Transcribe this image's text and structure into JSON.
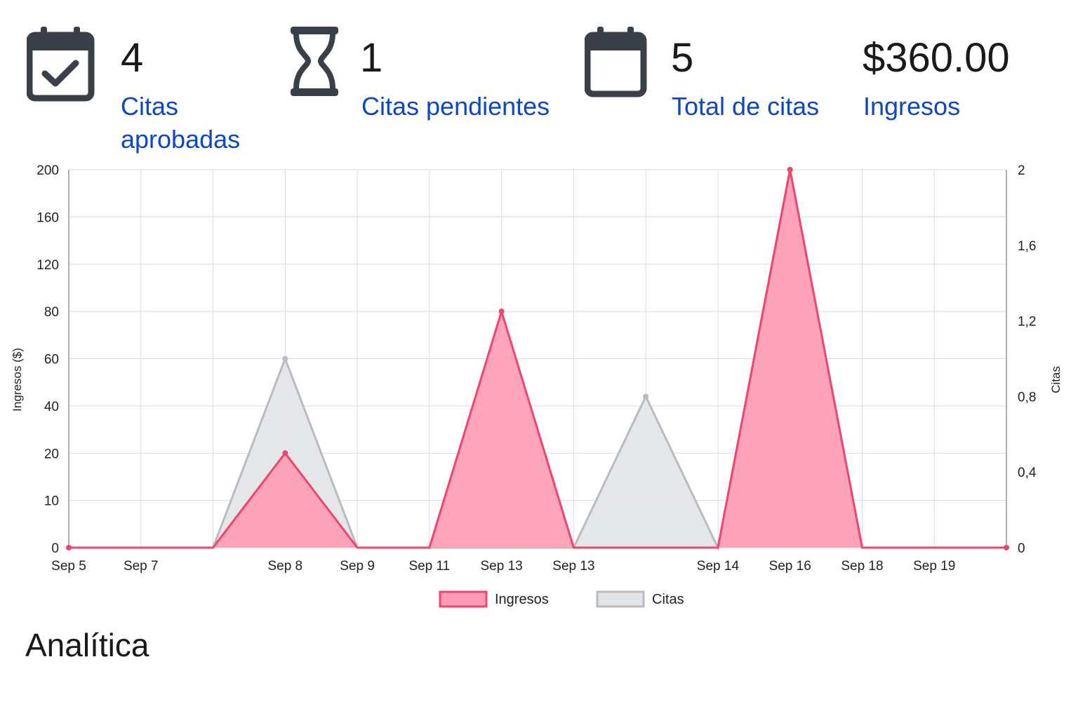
{
  "stats": [
    {
      "value": "4",
      "label": "Citas aprobadas",
      "icon": "calendar-check-icon"
    },
    {
      "value": "1",
      "label": "Citas pendientes",
      "icon": "hourglass-icon"
    },
    {
      "value": "5",
      "label": "Total de citas",
      "icon": "calendar-icon"
    },
    {
      "value": "$360.00",
      "label": "Ingresos",
      "icon": ""
    }
  ],
  "heading": "Analítica",
  "colors": {
    "ingresos_line": "#f0456e",
    "ingresos_fill": "#fe9bb5",
    "citas_line": "#b8bcc2",
    "citas_fill": "#e3e4e7",
    "label_link": "#0d47c1",
    "icon": "#3b4048"
  },
  "chart_data": {
    "type": "area",
    "x": [
      "Sep 5",
      "Sep 7",
      "",
      "Sep 8",
      "Sep 9",
      "Sep 11",
      "Sep 13",
      "Sep 13",
      "",
      "Sep 14",
      "Sep 16",
      "Sep 18",
      "Sep 19",
      ""
    ],
    "series": [
      {
        "name": "Ingresos",
        "axis": "left",
        "values": [
          0,
          0,
          0,
          20,
          0,
          0,
          80,
          0,
          0,
          0,
          200,
          0,
          0,
          0
        ]
      },
      {
        "name": "Citas",
        "axis": "right",
        "values": [
          0,
          0,
          0,
          1,
          0,
          0,
          0,
          0,
          0.8,
          0,
          2,
          0,
          0,
          0
        ]
      }
    ],
    "y_left": {
      "label": "Ingresos ($)",
      "ticks": [
        "200",
        "160",
        "120",
        "80",
        "60",
        "40",
        "20",
        "10",
        "0"
      ]
    },
    "y_right": {
      "label": "Citas",
      "ticks": [
        "2",
        "1,6",
        "1,2",
        "0,8",
        "0,4",
        "0"
      ],
      "range": [
        0,
        2
      ]
    },
    "grid": true,
    "legend_position": "bottom"
  }
}
